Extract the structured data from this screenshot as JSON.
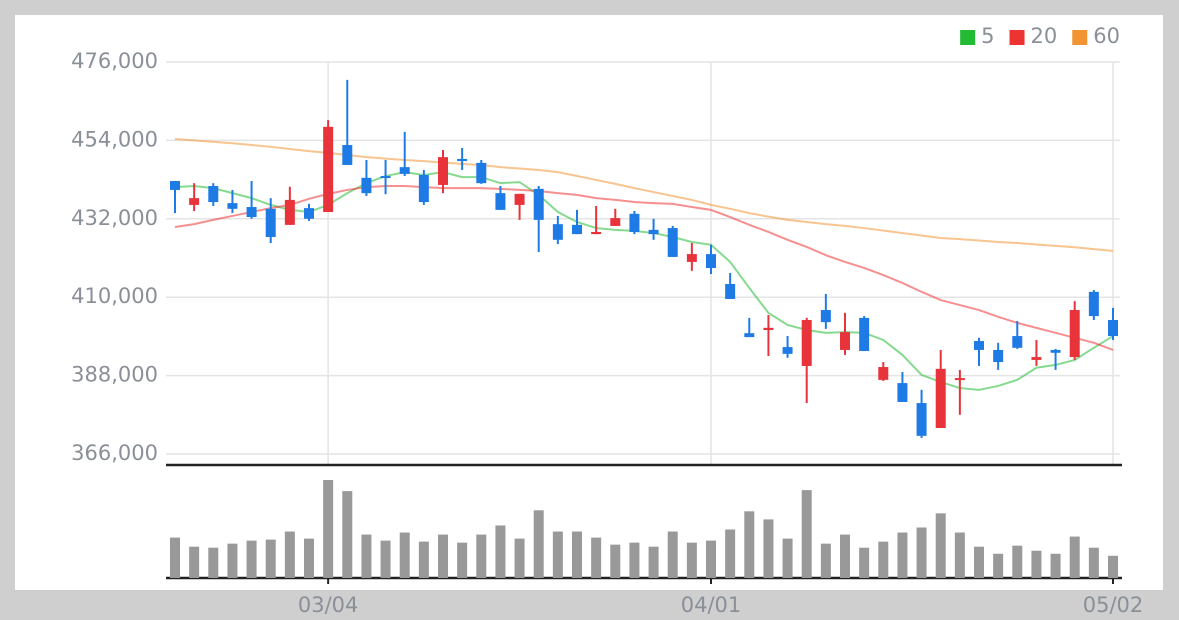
{
  "chart_data": {
    "type": "candlestick",
    "categories": [
      null,
      null,
      null,
      null,
      null,
      null,
      null,
      null,
      "03/04",
      null,
      null,
      null,
      null,
      null,
      null,
      null,
      null,
      null,
      null,
      null,
      null,
      null,
      null,
      null,
      null,
      null,
      null,
      null,
      "04/01",
      null,
      null,
      null,
      null,
      null,
      null,
      null,
      null,
      null,
      null,
      null,
      null,
      null,
      null,
      null,
      null,
      null,
      null,
      null,
      null,
      "05/02"
    ],
    "open": [
      442600,
      435900,
      441200,
      436400,
      435300,
      434800,
      430300,
      435000,
      433900,
      452700,
      443500,
      444000,
      446500,
      444300,
      441500,
      448800,
      447700,
      439200,
      435900,
      440400,
      430500,
      430300,
      427700,
      430000,
      433400,
      428900,
      429400,
      419900,
      422100,
      413700,
      399900,
      400800,
      396000,
      390700,
      406400,
      395200,
      404200,
      386800,
      385900,
      380300,
      373300,
      386800,
      397700,
      395200,
      399100,
      392400,
      395200,
      393200,
      411500,
      403600
    ],
    "high": [
      442600,
      442000,
      442000,
      440100,
      442600,
      437800,
      441000,
      436200,
      459700,
      471000,
      448500,
      448500,
      456400,
      445700,
      451300,
      451900,
      448500,
      441200,
      439000,
      441200,
      432800,
      434500,
      435600,
      434800,
      434200,
      432000,
      430000,
      425200,
      424700,
      416800,
      404200,
      405000,
      399100,
      404200,
      410900,
      405600,
      404700,
      391800,
      389000,
      384000,
      395200,
      389600,
      398600,
      397200,
      403300,
      398000,
      395500,
      408900,
      412000,
      407000
    ],
    "low": [
      433600,
      434200,
      435600,
      433600,
      432000,
      425200,
      430300,
      431400,
      433900,
      447100,
      438400,
      438900,
      444000,
      435900,
      439200,
      445700,
      441800,
      434500,
      431700,
      422700,
      424900,
      427700,
      427700,
      430000,
      427700,
      426100,
      421300,
      417400,
      416500,
      409500,
      398800,
      393500,
      393000,
      380300,
      401100,
      393800,
      394900,
      386500,
      380600,
      370500,
      373300,
      377000,
      390700,
      389600,
      395500,
      390700,
      389600,
      392400,
      403600,
      398000
    ],
    "close": [
      440100,
      437800,
      436700,
      434800,
      432500,
      426900,
      437300,
      432000,
      457800,
      447100,
      439200,
      443500,
      444600,
      436700,
      449300,
      448200,
      442000,
      434500,
      439000,
      431700,
      426100,
      427700,
      428300,
      432200,
      428300,
      427700,
      421300,
      422100,
      418200,
      409500,
      398800,
      401400,
      394100,
      403600,
      403000,
      400200,
      394900,
      390400,
      380600,
      371100,
      389900,
      387300,
      395200,
      391800,
      395800,
      393200,
      394400,
      406400,
      404700,
      399100
    ],
    "up_color": "#e8333a",
    "down_color": "#1e7be6",
    "series": [
      {
        "name": "5",
        "color": "#22bb33",
        "values": [
          440900,
          441200,
          440600,
          439200,
          437800,
          435900,
          434500,
          433900,
          435900,
          439200,
          442000,
          444000,
          445100,
          444300,
          445100,
          443700,
          443700,
          442000,
          442300,
          438700,
          433900,
          431100,
          429400,
          428900,
          428600,
          428000,
          426900,
          425500,
          424700,
          419900,
          412600,
          405600,
          402200,
          400800,
          400000,
          400200,
          400000,
          398000,
          393800,
          388200,
          386200,
          384500,
          384000,
          385100,
          386800,
          390200,
          391000,
          392400,
          395800,
          399100
        ]
      },
      {
        "name": "20",
        "color": "#ee3333",
        "values": [
          429700,
          430500,
          431700,
          432800,
          433900,
          435000,
          435900,
          437600,
          439000,
          440100,
          440900,
          441200,
          441200,
          440900,
          440600,
          440600,
          440600,
          440400,
          440100,
          439800,
          439200,
          438700,
          437800,
          437300,
          436700,
          436400,
          436200,
          435300,
          434500,
          432500,
          430300,
          428300,
          426100,
          424100,
          421800,
          419900,
          418200,
          416200,
          414000,
          411500,
          409200,
          407800,
          406400,
          404500,
          402800,
          401400,
          400000,
          398600,
          397200,
          395200
        ]
      },
      {
        "name": "60",
        "color": "#f39433",
        "values": [
          454400,
          454000,
          453600,
          453200,
          452700,
          452200,
          451600,
          451000,
          450500,
          449900,
          449300,
          448900,
          448500,
          448200,
          447800,
          447400,
          447100,
          446500,
          446100,
          445700,
          445100,
          444000,
          442900,
          441800,
          440600,
          439500,
          438400,
          437300,
          435900,
          434800,
          433600,
          432600,
          431700,
          431100,
          430500,
          430000,
          429400,
          428700,
          428000,
          427300,
          426600,
          426300,
          425900,
          425500,
          425200,
          424800,
          424400,
          424000,
          423500,
          423000
        ]
      }
    ],
    "volume": [
      40,
      31,
      30,
      34,
      37,
      38,
      46,
      39,
      97,
      86,
      43,
      37,
      45,
      36,
      43,
      35,
      43,
      52,
      39,
      67,
      46,
      46,
      40,
      33,
      35,
      31,
      46,
      35,
      37,
      48,
      66,
      58,
      39,
      87,
      34,
      43,
      30,
      36,
      45,
      50,
      64,
      45,
      31,
      24,
      32,
      27,
      24,
      41,
      30,
      22
    ],
    "volume_color": "#999999",
    "ylim": [
      366000,
      476000
    ],
    "yticks": [
      {
        "value": 366000,
        "label": "366,000"
      },
      {
        "value": 388000,
        "label": "388,000"
      },
      {
        "value": 410000,
        "label": "410,000"
      },
      {
        "value": 432000,
        "label": "432,000"
      },
      {
        "value": 454000,
        "label": "454,000"
      },
      {
        "value": 476000,
        "label": "476,000"
      }
    ],
    "grid": true,
    "legend": "top-right"
  }
}
